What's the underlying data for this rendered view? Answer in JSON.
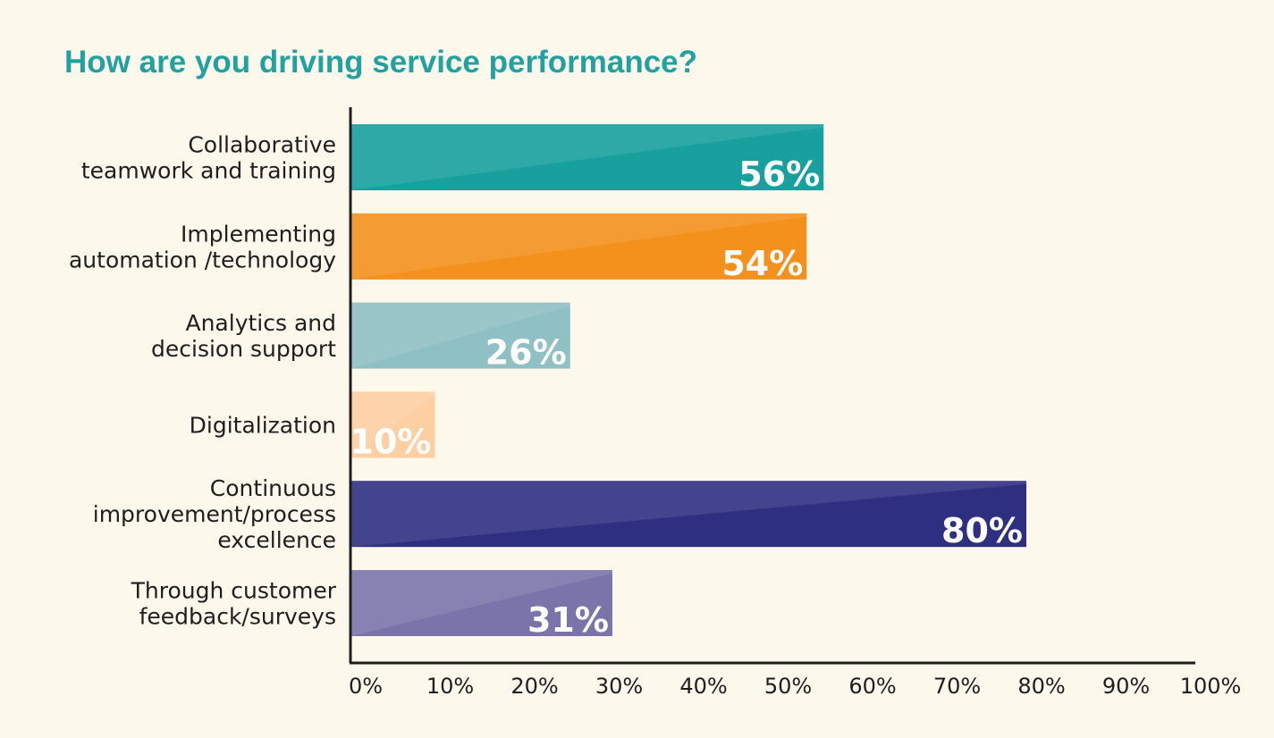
{
  "colors": {
    "background": "#fdf8ec",
    "title": "#21a19f",
    "axis": "#1e1e1e",
    "text": "#1e1e1e",
    "value_text": "#ffffff"
  },
  "chart_data": {
    "type": "bar",
    "orientation": "horizontal",
    "title": "How are you driving service performance?",
    "xlabel": "",
    "ylabel": "",
    "xlim": [
      0,
      100
    ],
    "grid": false,
    "x_ticks": [
      0,
      10,
      20,
      30,
      40,
      50,
      60,
      70,
      80,
      90,
      100
    ],
    "x_tick_labels": [
      "0%",
      "10%",
      "20%",
      "30%",
      "40%",
      "50%",
      "60%",
      "70%",
      "80%",
      "90%",
      "100%"
    ],
    "categories": [
      "Collaborative teamwork and training",
      "Implementing automation /technology",
      "Analytics and decision support",
      "Digitalization",
      "Continuous improvement/process excellence",
      "Through customer feedback/surveys"
    ],
    "category_label_lines": [
      [
        "Collaborative",
        "teamwork and training"
      ],
      [
        "Implementing",
        "automation /technology"
      ],
      [
        "Analytics and",
        "decision support"
      ],
      [
        "Digitalization"
      ],
      [
        "Continuous",
        "improvement/process",
        "excellence"
      ],
      [
        "Through customer",
        "feedback/surveys"
      ]
    ],
    "values": [
      56,
      54,
      26,
      10,
      80,
      31
    ],
    "value_labels": [
      "56%",
      "54%",
      "26%",
      "10%",
      "80%",
      "31%"
    ],
    "bar_colors": [
      "#17a09d",
      "#f4901c",
      "#8fc0c4",
      "#fdcfa3",
      "#2e2f80",
      "#7b74aa"
    ]
  }
}
